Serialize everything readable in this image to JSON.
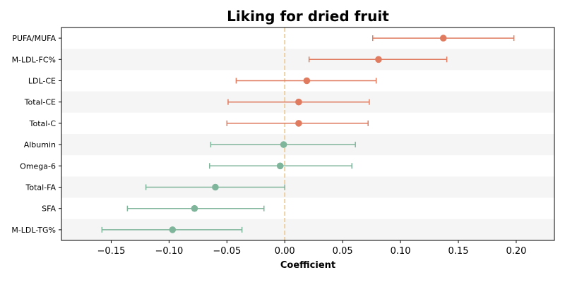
{
  "chart_data": {
    "type": "scatter",
    "title": "Liking for dried fruit",
    "xlabel": "Coefficient",
    "ylabel": "",
    "xlim": [
      -0.193,
      0.233
    ],
    "x_ticks": [
      -0.15,
      -0.1,
      -0.05,
      0.0,
      0.05,
      0.1,
      0.15,
      0.2
    ],
    "x_tick_labels": [
      "−0.15",
      "−0.10",
      "−0.05",
      "0.00",
      "0.05",
      "0.10",
      "0.15",
      "0.20"
    ],
    "reference_line": 0.0,
    "grid": false,
    "points": [
      {
        "label": "PUFA/MUFA",
        "estimate": 0.137,
        "ci_low": 0.076,
        "ci_high": 0.198,
        "group": "positive"
      },
      {
        "label": "M-LDL-FC%",
        "estimate": 0.081,
        "ci_low": 0.021,
        "ci_high": 0.14,
        "group": "positive"
      },
      {
        "label": "LDL-CE",
        "estimate": 0.019,
        "ci_low": -0.042,
        "ci_high": 0.079,
        "group": "positive"
      },
      {
        "label": "Total-CE",
        "estimate": 0.012,
        "ci_low": -0.049,
        "ci_high": 0.073,
        "group": "positive"
      },
      {
        "label": "Total-C",
        "estimate": 0.012,
        "ci_low": -0.05,
        "ci_high": 0.072,
        "group": "positive"
      },
      {
        "label": "Albumin",
        "estimate": -0.001,
        "ci_low": -0.064,
        "ci_high": 0.061,
        "group": "negative"
      },
      {
        "label": "Omega-6",
        "estimate": -0.004,
        "ci_low": -0.065,
        "ci_high": 0.058,
        "group": "negative"
      },
      {
        "label": "Total-FA",
        "estimate": -0.06,
        "ci_low": -0.12,
        "ci_high": 0.0,
        "group": "negative"
      },
      {
        "label": "SFA",
        "estimate": -0.078,
        "ci_low": -0.136,
        "ci_high": -0.018,
        "group": "negative"
      },
      {
        "label": "M-LDL-TG%",
        "estimate": -0.097,
        "ci_low": -0.158,
        "ci_high": -0.037,
        "group": "negative"
      }
    ],
    "colors": {
      "positive": "#e07b5f",
      "negative": "#7fb59a",
      "reference_line": "#f2c57f",
      "band": "#f5f5f5"
    }
  }
}
